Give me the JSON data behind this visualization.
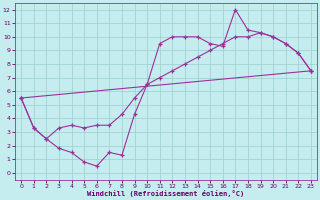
{
  "xlabel": "Windchill (Refroidissement éolien,°C)",
  "xlim": [
    -0.5,
    23.5
  ],
  "ylim": [
    -0.5,
    12.5
  ],
  "xticks": [
    0,
    1,
    2,
    3,
    4,
    5,
    6,
    7,
    8,
    9,
    10,
    11,
    12,
    13,
    14,
    15,
    16,
    17,
    18,
    19,
    20,
    21,
    22,
    23
  ],
  "yticks": [
    0,
    1,
    2,
    3,
    4,
    5,
    6,
    7,
    8,
    9,
    10,
    11,
    12
  ],
  "bg_color": "#c5ecee",
  "line_color": "#993399",
  "grid_color": "#9ecece",
  "curve1_x": [
    0,
    1,
    2,
    3,
    4,
    5,
    6,
    7,
    8,
    9,
    10,
    11,
    12,
    13,
    14,
    15,
    16,
    17,
    18,
    19,
    20,
    21,
    22,
    23
  ],
  "curve1_y": [
    5.5,
    3.3,
    2.5,
    1.8,
    1.5,
    0.8,
    0.5,
    1.5,
    1.3,
    4.3,
    6.5,
    9.5,
    10.0,
    10.0,
    10.0,
    9.5,
    9.3,
    12.0,
    10.5,
    10.3,
    10.0,
    9.5,
    8.8,
    7.5
  ],
  "curve2_x": [
    0,
    1,
    2,
    3,
    4,
    5,
    6,
    7,
    8,
    9,
    10,
    11,
    12,
    13,
    14,
    15,
    16,
    17,
    18,
    19,
    20,
    21,
    22,
    23
  ],
  "curve2_y": [
    5.5,
    3.3,
    2.5,
    3.3,
    3.5,
    3.3,
    3.5,
    3.5,
    4.3,
    5.5,
    6.5,
    7.0,
    7.5,
    8.0,
    8.5,
    9.0,
    9.5,
    10.0,
    10.0,
    10.3,
    10.0,
    9.5,
    8.8,
    7.5
  ],
  "curve3_x": [
    0,
    23
  ],
  "curve3_y": [
    5.5,
    7.5
  ]
}
